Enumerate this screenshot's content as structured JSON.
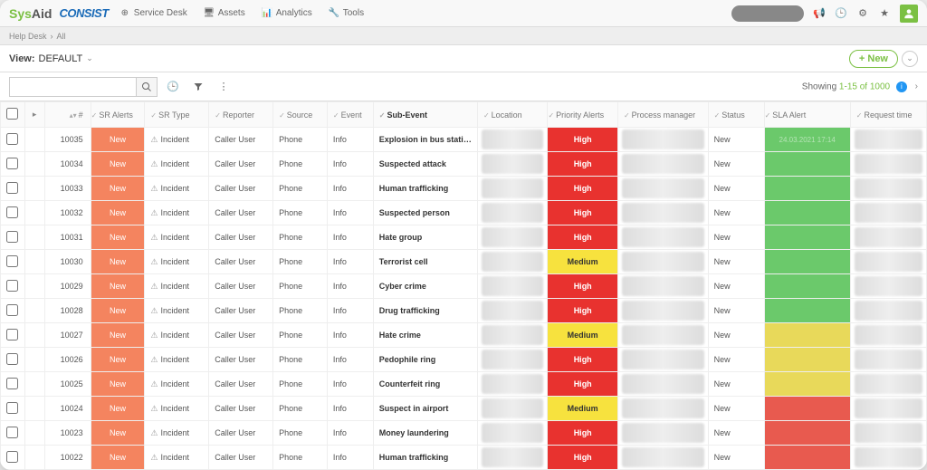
{
  "brand": {
    "sysaid1": "Sys",
    "sysaid2": "Aid",
    "consist": "CONSIST"
  },
  "nav": [
    {
      "label": "Service Desk",
      "icon": "⊕"
    },
    {
      "label": "Assets",
      "icon": "🖥"
    },
    {
      "label": "Analytics",
      "icon": "📊"
    },
    {
      "label": "Tools",
      "icon": "🔧"
    }
  ],
  "breadcrumb": {
    "a": "Help Desk",
    "b": "All"
  },
  "view": {
    "label": "View:",
    "name": "DEFAULT"
  },
  "new_btn": "+ New",
  "search_placeholder": "",
  "showing": {
    "prefix": "Showing ",
    "range": "1-15 of 1000"
  },
  "columns": [
    "",
    "",
    "#",
    "SR Alerts",
    "SR Type",
    "Reporter",
    "Source",
    "Event",
    "Sub-Event",
    "Location",
    "Priority Alerts",
    "Process manager",
    "Status",
    "SLA Alert",
    "Request time"
  ],
  "colors": {
    "sr_alert_new": "#f4845f",
    "priority_high_bg": "#e8322f",
    "priority_high_text": "#ffffff",
    "priority_med_bg": "#f7e23e",
    "priority_med_text": "#333333",
    "sla_green": "#6bc96b",
    "sla_yellow": "#e8d95a",
    "sla_red": "#e85a4f"
  },
  "rows": [
    {
      "id": "10035",
      "sr_alert": "New",
      "sr_type": "Incident",
      "reporter": "Caller User",
      "source": "Phone",
      "event": "Info",
      "sub_event": "Explosion in bus station",
      "priority": "High",
      "status": "New",
      "sla": "green",
      "sla_text": "24.03.2021 17:14"
    },
    {
      "id": "10034",
      "sr_alert": "New",
      "sr_type": "Incident",
      "reporter": "Caller User",
      "source": "Phone",
      "event": "Info",
      "sub_event": "Suspected attack",
      "priority": "High",
      "status": "New",
      "sla": "green",
      "sla_text": ""
    },
    {
      "id": "10033",
      "sr_alert": "New",
      "sr_type": "Incident",
      "reporter": "Caller User",
      "source": "Phone",
      "event": "Info",
      "sub_event": "Human trafficking",
      "priority": "High",
      "status": "New",
      "sla": "green",
      "sla_text": ""
    },
    {
      "id": "10032",
      "sr_alert": "New",
      "sr_type": "Incident",
      "reporter": "Caller User",
      "source": "Phone",
      "event": "Info",
      "sub_event": "Suspected person",
      "priority": "High",
      "status": "New",
      "sla": "green",
      "sla_text": ""
    },
    {
      "id": "10031",
      "sr_alert": "New",
      "sr_type": "Incident",
      "reporter": "Caller User",
      "source": "Phone",
      "event": "Info",
      "sub_event": "Hate group",
      "priority": "High",
      "status": "New",
      "sla": "green",
      "sla_text": ""
    },
    {
      "id": "10030",
      "sr_alert": "New",
      "sr_type": "Incident",
      "reporter": "Caller User",
      "source": "Phone",
      "event": "Info",
      "sub_event": "Terrorist cell",
      "priority": "Medium",
      "status": "New",
      "sla": "green",
      "sla_text": ""
    },
    {
      "id": "10029",
      "sr_alert": "New",
      "sr_type": "Incident",
      "reporter": "Caller User",
      "source": "Phone",
      "event": "Info",
      "sub_event": "Cyber crime",
      "priority": "High",
      "status": "New",
      "sla": "green",
      "sla_text": ""
    },
    {
      "id": "10028",
      "sr_alert": "New",
      "sr_type": "Incident",
      "reporter": "Caller User",
      "source": "Phone",
      "event": "Info",
      "sub_event": "Drug trafficking",
      "priority": "High",
      "status": "New",
      "sla": "green",
      "sla_text": ""
    },
    {
      "id": "10027",
      "sr_alert": "New",
      "sr_type": "Incident",
      "reporter": "Caller User",
      "source": "Phone",
      "event": "Info",
      "sub_event": "Hate crime",
      "priority": "Medium",
      "status": "New",
      "sla": "yellow",
      "sla_text": ""
    },
    {
      "id": "10026",
      "sr_alert": "New",
      "sr_type": "Incident",
      "reporter": "Caller User",
      "source": "Phone",
      "event": "Info",
      "sub_event": "Pedophile ring",
      "priority": "High",
      "status": "New",
      "sla": "yellow",
      "sla_text": ""
    },
    {
      "id": "10025",
      "sr_alert": "New",
      "sr_type": "Incident",
      "reporter": "Caller User",
      "source": "Phone",
      "event": "Info",
      "sub_event": "Counterfeit ring",
      "priority": "High",
      "status": "New",
      "sla": "yellow",
      "sla_text": ""
    },
    {
      "id": "10024",
      "sr_alert": "New",
      "sr_type": "Incident",
      "reporter": "Caller User",
      "source": "Phone",
      "event": "Info",
      "sub_event": "Suspect in airport",
      "priority": "Medium",
      "status": "New",
      "sla": "red",
      "sla_text": ""
    },
    {
      "id": "10023",
      "sr_alert": "New",
      "sr_type": "Incident",
      "reporter": "Caller User",
      "source": "Phone",
      "event": "Info",
      "sub_event": "Money laundering",
      "priority": "High",
      "status": "New",
      "sla": "red",
      "sla_text": ""
    },
    {
      "id": "10022",
      "sr_alert": "New",
      "sr_type": "Incident",
      "reporter": "Caller User",
      "source": "Phone",
      "event": "Info",
      "sub_event": "Human trafficking",
      "priority": "High",
      "status": "New",
      "sla": "red",
      "sla_text": ""
    }
  ]
}
